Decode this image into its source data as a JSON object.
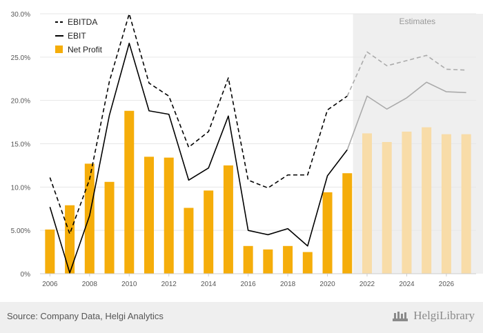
{
  "chart_data": {
    "type": "bar",
    "x": [
      "2006",
      "2007",
      "2008",
      "2009",
      "2010",
      "2011",
      "2012",
      "2013",
      "2014",
      "2015",
      "2016",
      "2017",
      "2018",
      "2019",
      "2020",
      "2021",
      "2022",
      "2023",
      "2024",
      "2025",
      "2026",
      "2027"
    ],
    "x_tick_labels": [
      "2006",
      "2008",
      "2010",
      "2012",
      "2014",
      "2016",
      "2018",
      "2020",
      "2022",
      "2024",
      "2026"
    ],
    "y_tick_labels": [
      "0%",
      "5.00%",
      "10.0%",
      "15.0%",
      "20.0%",
      "25.0%",
      "30.0%"
    ],
    "y_ticks": [
      0,
      5,
      10,
      15,
      20,
      25,
      30
    ],
    "ylim": [
      0,
      30
    ],
    "unit": "%",
    "grid": true,
    "legend_position": "top-left",
    "estimates_label": "Estimates",
    "estimates_start": "2022",
    "series": [
      {
        "name": "EBITDA",
        "kind": "line",
        "style": "dashed",
        "color": "#000000",
        "values": [
          11.1,
          4.6,
          10.9,
          22.2,
          30.0,
          22.0,
          20.5,
          14.6,
          16.4,
          22.6,
          10.8,
          9.9,
          11.4,
          11.4,
          18.9,
          20.5,
          25.6,
          24.0,
          24.6,
          25.2,
          23.6,
          23.5
        ]
      },
      {
        "name": "EBIT",
        "kind": "line",
        "style": "solid",
        "color": "#000000",
        "values": [
          7.7,
          0.1,
          6.7,
          18.3,
          26.6,
          18.8,
          18.4,
          10.8,
          12.2,
          18.2,
          5.0,
          4.5,
          5.2,
          3.2,
          11.3,
          14.3,
          20.5,
          19.0,
          20.3,
          22.1,
          21.0,
          20.9
        ]
      },
      {
        "name": "Net Profit",
        "kind": "bar",
        "color": "#f5ad0a",
        "values": [
          5.1,
          7.9,
          12.7,
          10.6,
          18.8,
          13.5,
          13.4,
          7.6,
          9.6,
          12.5,
          3.2,
          2.8,
          3.2,
          2.5,
          9.4,
          11.6,
          16.2,
          15.2,
          16.4,
          16.9,
          16.1,
          16.1
        ]
      }
    ],
    "colors": {
      "bar": "#f5ad0a",
      "bar_estimate": "#f8dca8",
      "line_estimate": "#aaaaaa",
      "estimate_band": "#efefef",
      "grid": "#e6e6e6"
    }
  },
  "footer": {
    "source": "Source: Company Data, Helgi Analytics",
    "brand": "HelgiLibrary"
  }
}
